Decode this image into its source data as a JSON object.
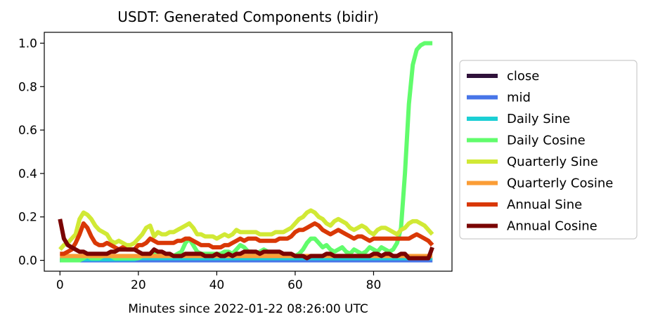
{
  "chart_data": {
    "type": "line",
    "title": "USDT: Generated Components (bidir)",
    "xlabel": "Minutes since 2022-01-22 08:26:00 UTC",
    "ylabel": "",
    "xlim": [
      -4,
      100
    ],
    "ylim": [
      -0.05,
      1.05
    ],
    "xticks": [
      0,
      20,
      40,
      60,
      80
    ],
    "yticks": [
      0.0,
      0.2,
      0.4,
      0.6,
      0.8,
      1.0
    ],
    "xtick_labels": [
      "0",
      "20",
      "40",
      "60",
      "80"
    ],
    "ytick_labels": [
      "0.0",
      "0.2",
      "0.4",
      "0.6",
      "0.8",
      "1.0"
    ],
    "grid": false,
    "legend_position": "outside-right",
    "x": [
      0,
      1,
      2,
      3,
      4,
      5,
      6,
      7,
      8,
      9,
      10,
      11,
      12,
      13,
      14,
      15,
      16,
      17,
      18,
      19,
      20,
      21,
      22,
      23,
      24,
      25,
      26,
      27,
      28,
      29,
      30,
      31,
      32,
      33,
      34,
      35,
      36,
      37,
      38,
      39,
      40,
      41,
      42,
      43,
      44,
      45,
      46,
      47,
      48,
      49,
      50,
      51,
      52,
      53,
      54,
      55,
      56,
      57,
      58,
      59,
      60,
      61,
      62,
      63,
      64,
      65,
      66,
      67,
      68,
      69,
      70,
      71,
      72,
      73,
      74,
      75,
      76,
      77,
      78,
      79,
      80,
      81,
      82,
      83,
      84,
      85,
      86,
      87,
      88,
      89,
      90,
      91,
      92,
      93,
      94,
      95
    ],
    "series": [
      {
        "name": "close",
        "color": "#30123b",
        "values": [
          0,
          0,
          0,
          0,
          0,
          0,
          0,
          0,
          0,
          0,
          0,
          0,
          0,
          0,
          0,
          0,
          0,
          0,
          0,
          0,
          0,
          0,
          0,
          0,
          0,
          0,
          0,
          0,
          0,
          0,
          0,
          0,
          0,
          0,
          0,
          0,
          0,
          0,
          0,
          0,
          0,
          0,
          0,
          0,
          0,
          0,
          0,
          0,
          0,
          0,
          0,
          0,
          0,
          0,
          0,
          0,
          0,
          0,
          0,
          0,
          0,
          0,
          0,
          0,
          0,
          0,
          0,
          0,
          0,
          0,
          0,
          0,
          0,
          0,
          0,
          0,
          0,
          0,
          0,
          0,
          0,
          0,
          0,
          0,
          0,
          0,
          0,
          0,
          0,
          0,
          0,
          0,
          0,
          0,
          0,
          0
        ]
      },
      {
        "name": "mid",
        "color": "#4775e8",
        "values": [
          0,
          0,
          0,
          0,
          0,
          0,
          0,
          0,
          0,
          0,
          0,
          0,
          0,
          0,
          0,
          0,
          0,
          0,
          0,
          0,
          0,
          0,
          0,
          0,
          0,
          0,
          0,
          0,
          0,
          0,
          0,
          0,
          0,
          0,
          0,
          0,
          0,
          0,
          0,
          0,
          0,
          0,
          0,
          0,
          0,
          0,
          0,
          0,
          0,
          0,
          0,
          0,
          0,
          0,
          0,
          0,
          0,
          0,
          0,
          0,
          0,
          0,
          0,
          0,
          0,
          0,
          0,
          0,
          0,
          0,
          0,
          0,
          0,
          0,
          0,
          0,
          0,
          0,
          0,
          0,
          0,
          0,
          0,
          0,
          0,
          0,
          0,
          0,
          0,
          0,
          0,
          0,
          0,
          0,
          0,
          0
        ]
      },
      {
        "name": "Daily Sine",
        "color": "#1bcfd4",
        "values": [
          0.005,
          0.005,
          0.005,
          0.005,
          0.005,
          0.005,
          0.005,
          0.005,
          0.005,
          0.005,
          0.005,
          0.005,
          0.005,
          0.005,
          0.005,
          0.005,
          0.005,
          0.005,
          0.005,
          0.005,
          0.01,
          0.01,
          0.01,
          0.01,
          0.01,
          0.01,
          0.01,
          0.01,
          0.01,
          0.01,
          0.01,
          0.01,
          0.01,
          0.01,
          0.01,
          0.01,
          0.01,
          0.01,
          0.01,
          0.01,
          0.01,
          0.01,
          0.01,
          0.01,
          0.01,
          0.01,
          0.01,
          0.01,
          0.01,
          0.01,
          0.01,
          0.01,
          0.01,
          0.01,
          0.01,
          0.01,
          0.01,
          0.01,
          0.01,
          0.01,
          0.01,
          0.01,
          0.01,
          0.01,
          0.01,
          0.01,
          0.01,
          0.01,
          0.01,
          0.01,
          0.01,
          0.01,
          0.01,
          0.01,
          0.01,
          0.01,
          0.01,
          0.01,
          0.01,
          0.01,
          0.01,
          0.01,
          0.01,
          0.01,
          0.01,
          0.01,
          0.01,
          0.01,
          0.01,
          0.01,
          0.01,
          0.01,
          0.01,
          0.01,
          0.01,
          0.01
        ]
      },
      {
        "name": "Daily Cosine",
        "color": "#61fc6c",
        "values": [
          0,
          0,
          0,
          0,
          0,
          0,
          0.01,
          0.02,
          0.01,
          0.01,
          0.01,
          0.02,
          0.03,
          0.02,
          0.01,
          0.01,
          0.01,
          0.01,
          0.01,
          0.01,
          0.01,
          0.02,
          0.02,
          0.03,
          0.03,
          0.02,
          0.02,
          0.02,
          0.02,
          0.02,
          0.03,
          0.04,
          0.08,
          0.1,
          0.07,
          0.04,
          0.03,
          0.03,
          0.03,
          0.03,
          0.03,
          0.03,
          0.04,
          0.04,
          0.03,
          0.05,
          0.07,
          0.06,
          0.04,
          0.04,
          0.03,
          0.04,
          0.05,
          0.04,
          0.03,
          0.03,
          0.03,
          0.02,
          0.02,
          0.02,
          0.02,
          0.03,
          0.05,
          0.08,
          0.1,
          0.1,
          0.08,
          0.06,
          0.07,
          0.05,
          0.04,
          0.05,
          0.06,
          0.04,
          0.03,
          0.05,
          0.04,
          0.03,
          0.04,
          0.06,
          0.05,
          0.04,
          0.06,
          0.05,
          0.04,
          0.05,
          0.08,
          0.15,
          0.4,
          0.72,
          0.9,
          0.97,
          0.99,
          1.0,
          1.0,
          1.0
        ]
      },
      {
        "name": "Quarterly Sine",
        "color": "#d1e935",
        "values": [
          0.05,
          0.07,
          0.08,
          0.1,
          0.12,
          0.19,
          0.22,
          0.21,
          0.19,
          0.16,
          0.14,
          0.13,
          0.12,
          0.09,
          0.08,
          0.09,
          0.08,
          0.07,
          0.07,
          0.08,
          0.1,
          0.12,
          0.15,
          0.16,
          0.11,
          0.13,
          0.12,
          0.12,
          0.13,
          0.13,
          0.14,
          0.15,
          0.16,
          0.17,
          0.15,
          0.12,
          0.12,
          0.11,
          0.11,
          0.11,
          0.1,
          0.11,
          0.12,
          0.11,
          0.12,
          0.14,
          0.13,
          0.13,
          0.13,
          0.13,
          0.13,
          0.12,
          0.12,
          0.12,
          0.12,
          0.13,
          0.13,
          0.13,
          0.14,
          0.15,
          0.17,
          0.19,
          0.2,
          0.22,
          0.23,
          0.22,
          0.2,
          0.19,
          0.17,
          0.16,
          0.18,
          0.19,
          0.18,
          0.17,
          0.15,
          0.14,
          0.15,
          0.16,
          0.15,
          0.13,
          0.12,
          0.14,
          0.15,
          0.15,
          0.14,
          0.13,
          0.12,
          0.14,
          0.15,
          0.17,
          0.18,
          0.18,
          0.17,
          0.16,
          0.14,
          0.12
        ]
      },
      {
        "name": "Quarterly Cosine",
        "color": "#fb9d36",
        "values": [
          0.02,
          0.02,
          0.02,
          0.02,
          0.02,
          0.02,
          0.02,
          0.02,
          0.02,
          0.02,
          0.02,
          0.02,
          0.02,
          0.02,
          0.02,
          0.02,
          0.02,
          0.02,
          0.02,
          0.02,
          0.02,
          0.02,
          0.02,
          0.02,
          0.02,
          0.02,
          0.02,
          0.02,
          0.02,
          0.02,
          0.02,
          0.02,
          0.02,
          0.02,
          0.02,
          0.02,
          0.02,
          0.02,
          0.02,
          0.02,
          0.02,
          0.02,
          0.02,
          0.02,
          0.02,
          0.02,
          0.02,
          0.02,
          0.02,
          0.02,
          0.02,
          0.02,
          0.02,
          0.02,
          0.02,
          0.02,
          0.02,
          0.02,
          0.02,
          0.02,
          0.02,
          0.02,
          0.02,
          0.02,
          0.02,
          0.02,
          0.02,
          0.02,
          0.02,
          0.02,
          0.02,
          0.02,
          0.02,
          0.02,
          0.02,
          0.02,
          0.02,
          0.02,
          0.02,
          0.02,
          0.02,
          0.02,
          0.02,
          0.02,
          0.02,
          0.02,
          0.02,
          0.02,
          0.02,
          0.02,
          0.02,
          0.02,
          0.02,
          0.02,
          0.02,
          0.02
        ]
      },
      {
        "name": "Annual Sine",
        "color": "#d93806",
        "values": [
          0.03,
          0.03,
          0.04,
          0.05,
          0.08,
          0.12,
          0.17,
          0.15,
          0.11,
          0.08,
          0.07,
          0.07,
          0.08,
          0.07,
          0.06,
          0.05,
          0.06,
          0.05,
          0.05,
          0.05,
          0.07,
          0.07,
          0.08,
          0.1,
          0.09,
          0.08,
          0.08,
          0.08,
          0.08,
          0.08,
          0.09,
          0.09,
          0.1,
          0.1,
          0.09,
          0.08,
          0.07,
          0.07,
          0.07,
          0.06,
          0.06,
          0.06,
          0.07,
          0.07,
          0.08,
          0.09,
          0.1,
          0.09,
          0.1,
          0.1,
          0.1,
          0.09,
          0.09,
          0.09,
          0.09,
          0.09,
          0.1,
          0.1,
          0.1,
          0.11,
          0.13,
          0.14,
          0.14,
          0.15,
          0.16,
          0.17,
          0.16,
          0.14,
          0.13,
          0.12,
          0.13,
          0.14,
          0.13,
          0.12,
          0.11,
          0.1,
          0.11,
          0.11,
          0.1,
          0.09,
          0.1,
          0.1,
          0.1,
          0.1,
          0.1,
          0.1,
          0.1,
          0.1,
          0.1,
          0.1,
          0.11,
          0.12,
          0.11,
          0.1,
          0.09,
          0.07
        ]
      },
      {
        "name": "Annual Cosine",
        "color": "#7a0403",
        "values": [
          0.19,
          0.1,
          0.07,
          0.06,
          0.05,
          0.04,
          0.04,
          0.03,
          0.03,
          0.03,
          0.03,
          0.03,
          0.03,
          0.04,
          0.04,
          0.05,
          0.05,
          0.05,
          0.05,
          0.05,
          0.04,
          0.03,
          0.03,
          0.03,
          0.05,
          0.04,
          0.04,
          0.03,
          0.03,
          0.02,
          0.02,
          0.02,
          0.03,
          0.03,
          0.03,
          0.03,
          0.03,
          0.02,
          0.02,
          0.02,
          0.03,
          0.02,
          0.02,
          0.03,
          0.02,
          0.03,
          0.03,
          0.04,
          0.04,
          0.04,
          0.04,
          0.03,
          0.04,
          0.04,
          0.04,
          0.04,
          0.04,
          0.03,
          0.03,
          0.03,
          0.02,
          0.02,
          0.02,
          0.01,
          0.02,
          0.02,
          0.02,
          0.02,
          0.03,
          0.03,
          0.02,
          0.02,
          0.02,
          0.02,
          0.02,
          0.02,
          0.02,
          0.02,
          0.02,
          0.02,
          0.03,
          0.03,
          0.02,
          0.03,
          0.03,
          0.02,
          0.02,
          0.03,
          0.03,
          0.01,
          0.01,
          0.01,
          0.01,
          0.01,
          0.01,
          0.06
        ]
      }
    ]
  }
}
